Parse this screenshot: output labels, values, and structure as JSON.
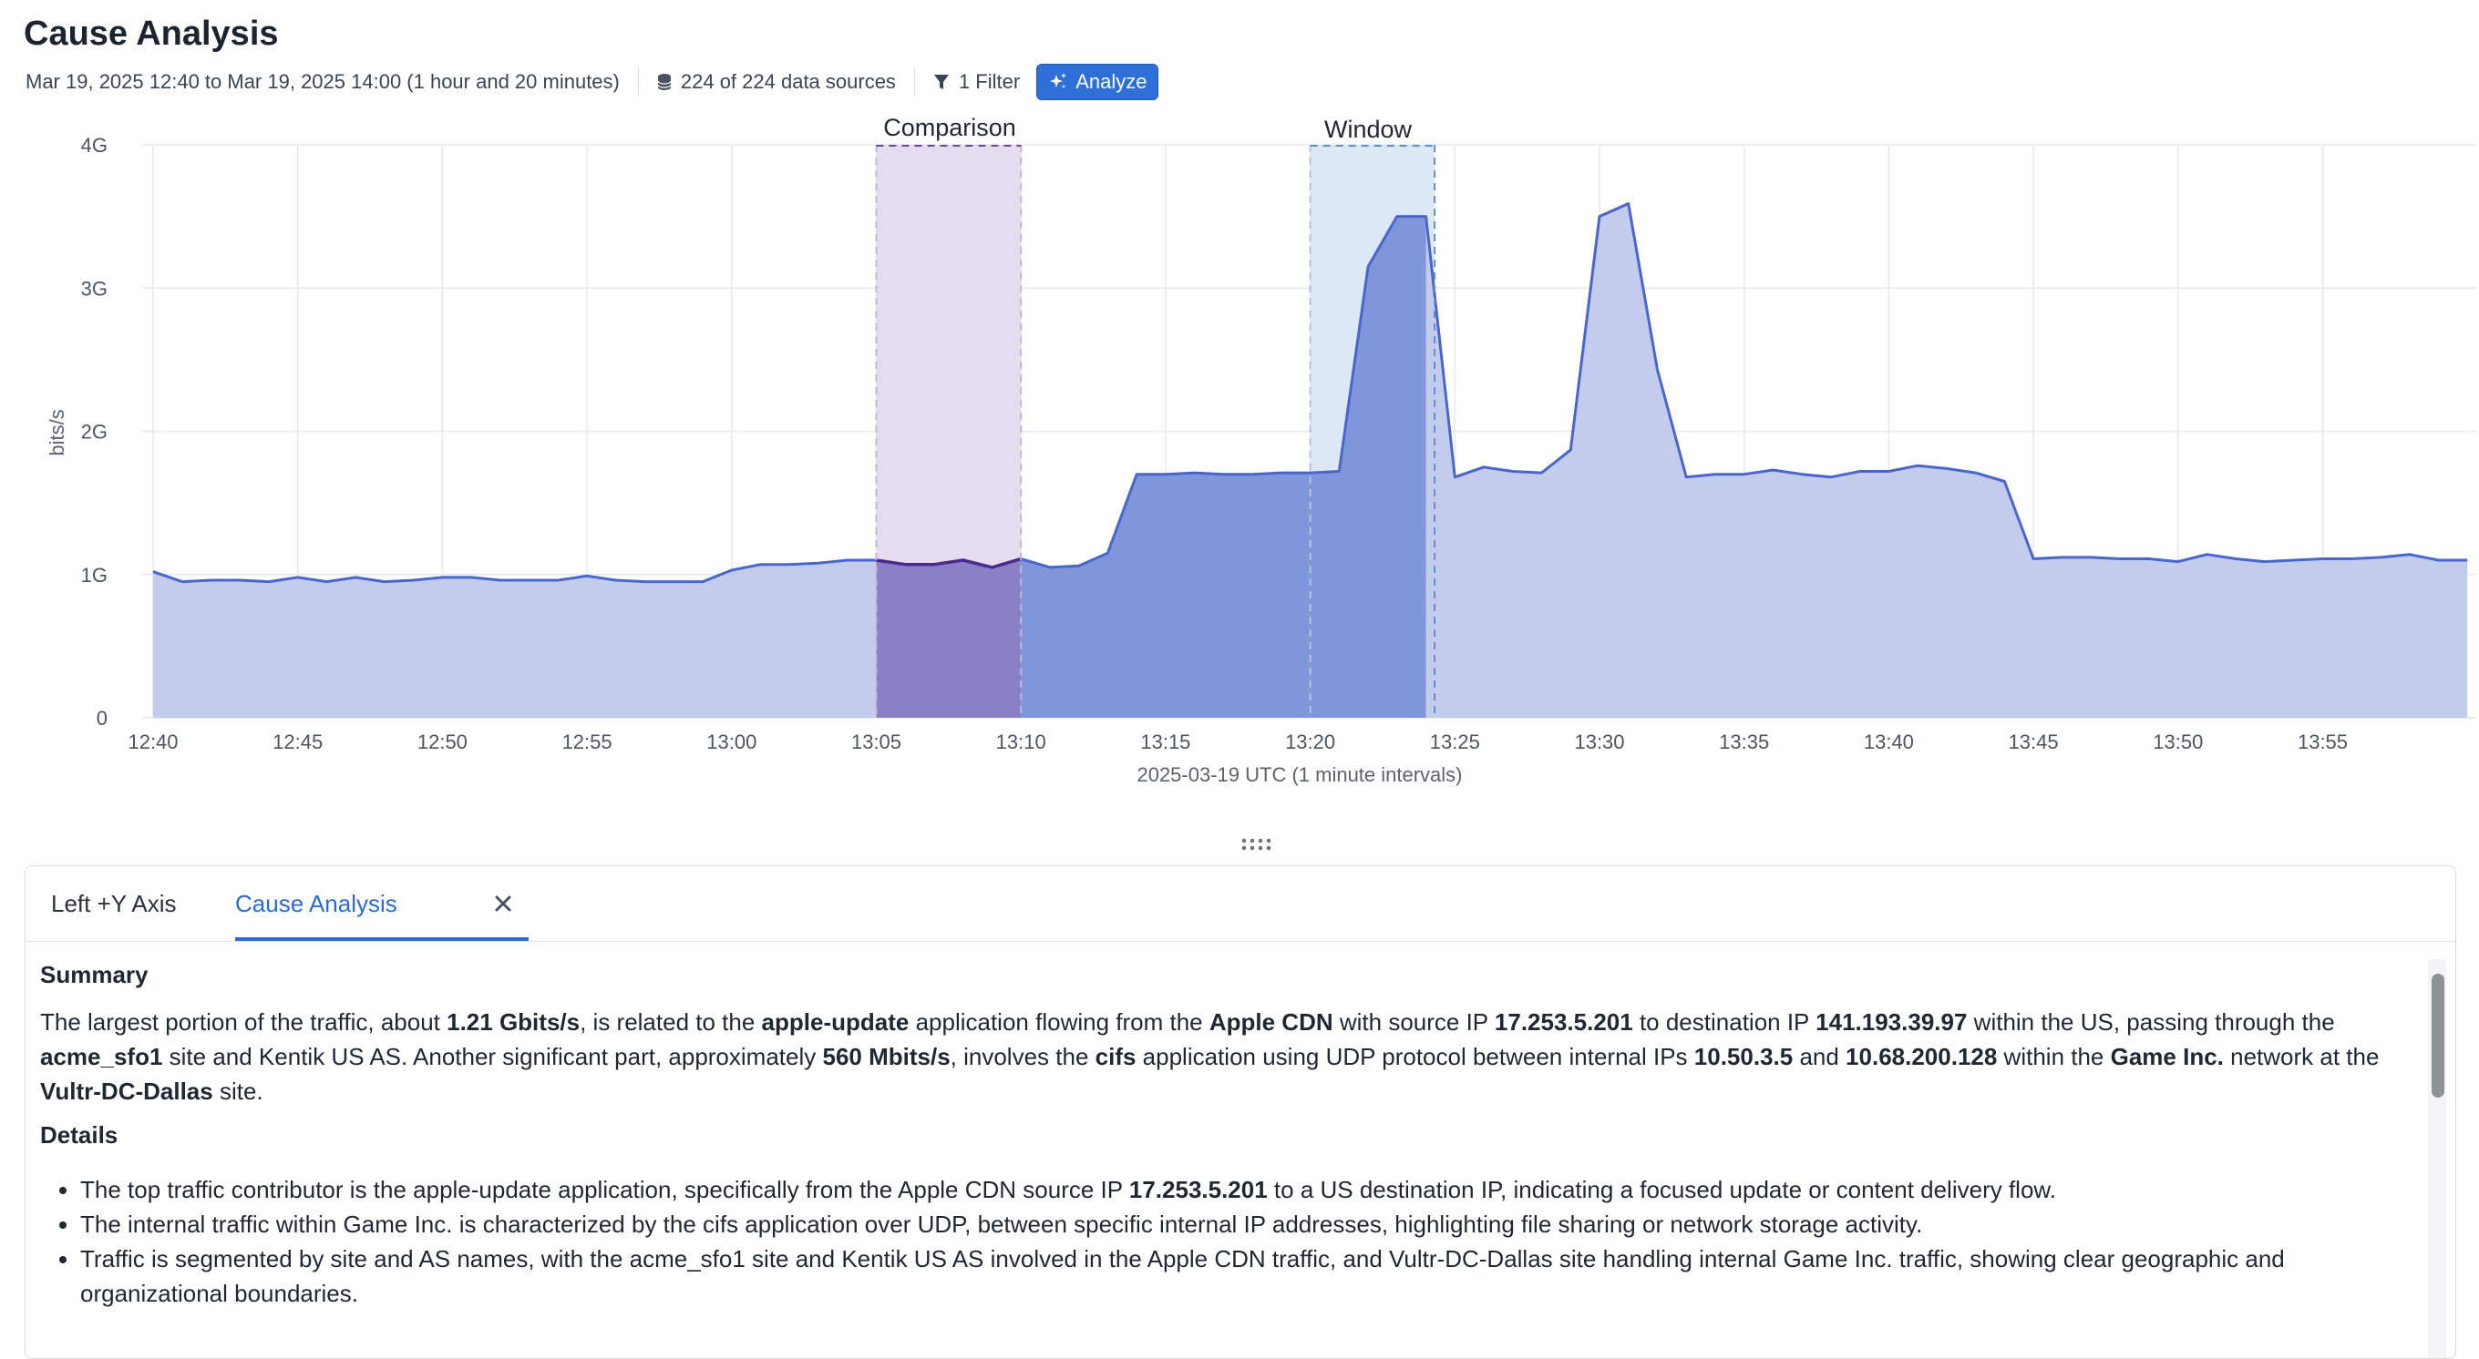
{
  "header": {
    "title": "Cause Analysis",
    "time_range": "Mar 19, 2025 12:40 to Mar 19, 2025 14:00 (1 hour and 20 minutes)",
    "data_sources": "224 of 224 data sources",
    "filter": "1 Filter",
    "analyze_label": "Analyze"
  },
  "colors": {
    "accent": "#2f6fd8",
    "series_fill": "#c3cced",
    "series_line": "#4a66cc",
    "window_fill": "#7f96da",
    "comparison_fill": "#8a80c6",
    "comparison_bg": "#e6dcef",
    "window_bg": "#dde8f6"
  },
  "chart_data": {
    "type": "area",
    "ylabel": "bits/s",
    "xlabel": "2025-03-19 UTC (1 minute intervals)",
    "y_ticks": [
      "0",
      "1G",
      "2G",
      "3G",
      "4G"
    ],
    "ylim": [
      0,
      4
    ],
    "x_ticks": [
      "12:40",
      "12:45",
      "12:50",
      "12:55",
      "13:00",
      "13:05",
      "13:10",
      "13:15",
      "13:20",
      "13:25",
      "13:30",
      "13:35",
      "13:40",
      "13:45",
      "13:50",
      "13:55"
    ],
    "x_start": "12:40",
    "x_end": "13:59",
    "grid": true,
    "series": [
      {
        "values": [
          1.02,
          0.95,
          0.96,
          0.96,
          0.95,
          0.98,
          0.95,
          0.98,
          0.95,
          0.96,
          0.98,
          0.98,
          0.96,
          0.96,
          0.96,
          0.99,
          0.96,
          0.95,
          0.95,
          0.95,
          1.03,
          1.07,
          1.07,
          1.08,
          1.1,
          1.1,
          1.07,
          1.07,
          1.1,
          1.05,
          1.11,
          1.05,
          1.06,
          1.15,
          1.7,
          1.7,
          1.71,
          1.7,
          1.7,
          1.71,
          1.71,
          1.72,
          3.15,
          3.5,
          3.5,
          1.68,
          1.75,
          1.72,
          1.71,
          1.87,
          3.5,
          3.59,
          2.43,
          1.68,
          1.7,
          1.7,
          1.73,
          1.7,
          1.68,
          1.72,
          1.72,
          1.76,
          1.74,
          1.71,
          1.65,
          1.11,
          1.12,
          1.12,
          1.11,
          1.11,
          1.09,
          1.14,
          1.11,
          1.09,
          1.1,
          1.11,
          1.11,
          1.12,
          1.14,
          1.1,
          1.1
        ]
      }
    ],
    "comparison": {
      "label": "Comparison",
      "start": "13:05",
      "end": "13:10"
    },
    "window": {
      "label": "Window",
      "start": "13:20",
      "end": "13:24"
    }
  },
  "panel": {
    "tabs": [
      {
        "label": "Left +Y Axis",
        "active": false
      },
      {
        "label": "Cause Analysis",
        "active": true
      }
    ],
    "summary_title": "Summary",
    "summary_html": "The largest portion of the traffic, about <b>1.21 Gbits/s</b>, is related to the <b>apple-update</b> application flowing from the <b>Apple CDN</b> with source IP <b>17.253.5.201</b> to destination IP <b>141.193.39.97</b> within the US, passing through the <b>acme_sfo1</b> site and Kentik US AS. Another significant part, approximately <b>560 Mbits/s</b>, involves the <b>cifs</b> application using UDP protocol between internal IPs <b>10.50.3.5</b> and <b>10.68.200.128</b> within the <b>Game Inc.</b> network at the <b>Vultr-DC-Dallas</b> site.",
    "details_title": "Details",
    "details": [
      "The top traffic contributor is the apple-update application, specifically from the Apple CDN source IP <b>17.253.5.201</b> to a US destination IP, indicating a focused update or content delivery flow.",
      "The internal traffic within Game Inc. is characterized by the cifs application over UDP, between specific internal IP addresses, highlighting file sharing or network storage activity.",
      "Traffic is segmented by site and AS names, with the acme_sfo1 site and Kentik US AS involved in the Apple CDN traffic, and Vultr-DC-Dallas site handling internal Game Inc. traffic, showing clear geographic and organizational boundaries."
    ]
  }
}
